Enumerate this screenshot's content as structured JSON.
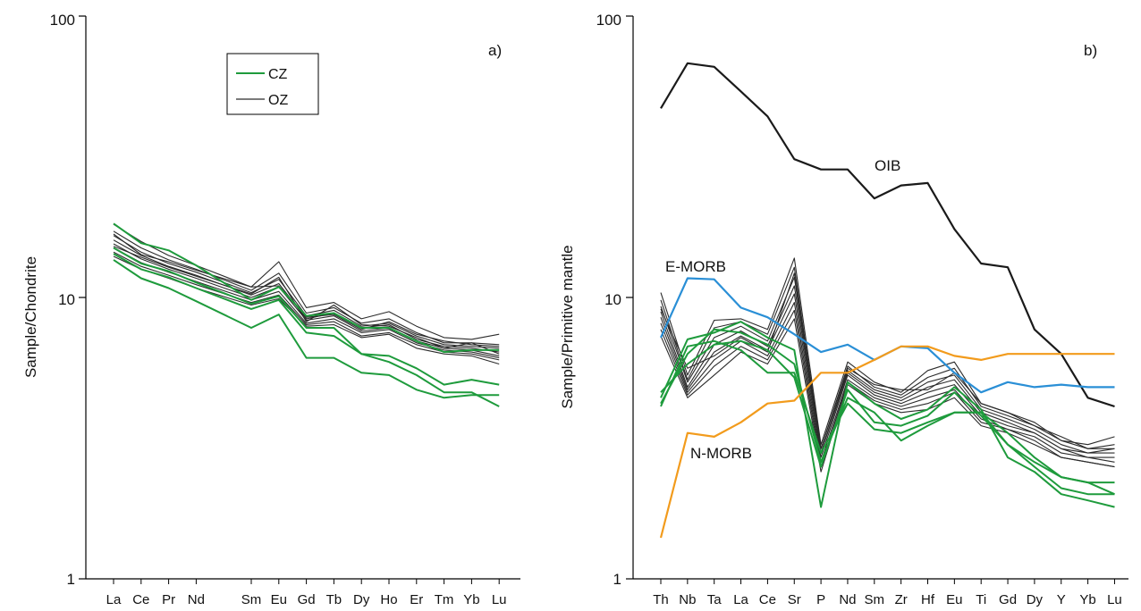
{
  "chart_data": [
    {
      "type": "line",
      "panel_label": "a)",
      "ylabel": "Sample/Chondrite",
      "yscale": "log",
      "ylim": [
        1,
        100
      ],
      "yticks": [
        "1",
        "10",
        "100"
      ],
      "categories": [
        "La",
        "Ce",
        "Pr",
        "Nd",
        "",
        "Sm",
        "Eu",
        "Gd",
        "Tb",
        "Dy",
        "Ho",
        "Er",
        "Tm",
        "Yb",
        "Lu"
      ],
      "legend": {
        "position": "top-center",
        "entries": [
          {
            "label": "CZ",
            "color": "#1e9b3c"
          },
          {
            "label": "OZ",
            "color": "#2b2b2b"
          }
        ]
      },
      "series": [
        {
          "group": "CZ",
          "color": "#1e9b3c",
          "values": [
            18.3,
            15.6,
            14.7,
            13.0,
            null,
            9.8,
            10.9,
            8.6,
            8.8,
            7.8,
            7.8,
            7.0,
            6.4,
            6.5,
            6.5
          ]
        },
        {
          "group": "CZ",
          "color": "#1e9b3c",
          "values": [
            13.6,
            11.7,
            10.8,
            9.7,
            null,
            7.8,
            8.7,
            6.1,
            6.1,
            5.4,
            5.3,
            4.7,
            4.4,
            4.5,
            4.5
          ]
        },
        {
          "group": "CZ",
          "color": "#1e9b3c",
          "values": [
            14.3,
            12.6,
            11.8,
            10.8,
            null,
            9.1,
            9.8,
            7.5,
            7.3,
            6.3,
            5.9,
            5.3,
            4.6,
            4.6,
            4.1
          ]
        },
        {
          "group": "CZ",
          "color": "#1e9b3c",
          "values": [
            15.0,
            13.2,
            12.4,
            11.3,
            null,
            9.5,
            10.1,
            7.8,
            7.8,
            6.3,
            6.2,
            5.6,
            4.9,
            5.1,
            4.9
          ]
        },
        {
          "group": "OZ",
          "color": "#2b2b2b",
          "values": [
            18.2,
            15.8,
            14.1,
            13.0,
            null,
            10.9,
            13.4,
            9.2,
            9.6,
            8.4,
            8.9,
            7.9,
            7.2,
            7.1,
            7.4
          ]
        },
        {
          "group": "OZ",
          "color": "#2b2b2b",
          "values": [
            17.2,
            15.0,
            13.6,
            12.6,
            null,
            10.6,
            12.2,
            8.8,
            9.2,
            8.1,
            8.4,
            7.5,
            6.9,
            6.9,
            6.8
          ]
        },
        {
          "group": "OZ",
          "color": "#2b2b2b",
          "values": [
            16.6,
            14.5,
            13.2,
            12.3,
            null,
            10.4,
            11.6,
            8.6,
            9.0,
            7.9,
            8.1,
            7.3,
            6.8,
            6.7,
            6.6
          ]
        },
        {
          "group": "OZ",
          "color": "#2b2b2b",
          "values": [
            16.0,
            14.1,
            12.9,
            12.0,
            null,
            10.2,
            11.2,
            8.4,
            8.8,
            7.8,
            8.0,
            7.1,
            6.7,
            6.6,
            6.4
          ]
        },
        {
          "group": "OZ",
          "color": "#2b2b2b",
          "values": [
            15.5,
            13.7,
            12.6,
            11.7,
            null,
            10.0,
            10.9,
            8.3,
            8.6,
            7.6,
            7.8,
            7.0,
            6.6,
            6.5,
            6.2
          ]
        },
        {
          "group": "OZ",
          "color": "#2b2b2b",
          "values": [
            15.0,
            13.3,
            12.3,
            11.4,
            null,
            9.8,
            10.5,
            8.1,
            8.4,
            7.5,
            7.7,
            6.9,
            6.5,
            6.4,
            6.1
          ]
        },
        {
          "group": "OZ",
          "color": "#2b2b2b",
          "values": [
            14.5,
            12.9,
            12.0,
            11.1,
            null,
            9.6,
            10.2,
            8.0,
            8.2,
            7.3,
            7.5,
            6.8,
            6.4,
            6.3,
            6.0
          ]
        },
        {
          "group": "OZ",
          "color": "#2b2b2b",
          "values": [
            14.0,
            12.6,
            11.7,
            10.8,
            null,
            9.4,
            9.9,
            7.9,
            8.0,
            7.2,
            7.4,
            6.6,
            6.3,
            6.2,
            5.8
          ]
        },
        {
          "group": "OZ",
          "color": "#2b2b2b",
          "values": [
            16.8,
            14.2,
            13.4,
            12.5,
            null,
            10.9,
            11.0,
            8.5,
            8.7,
            7.7,
            8.2,
            7.4,
            7.0,
            6.8,
            6.7
          ]
        },
        {
          "group": "OZ",
          "color": "#2b2b2b",
          "values": [
            15.2,
            13.9,
            12.8,
            11.9,
            null,
            10.3,
            11.8,
            8.2,
            9.4,
            8.0,
            7.9,
            7.2,
            6.6,
            6.9,
            6.3
          ]
        }
      ]
    },
    {
      "type": "line",
      "panel_label": "b)",
      "ylabel": "Sample/Primitive mantle",
      "yscale": "log",
      "ylim": [
        1,
        100
      ],
      "yticks": [
        "1",
        "10",
        "100"
      ],
      "categories": [
        "Th",
        "Nb",
        "Ta",
        "La",
        "Ce",
        "Sr",
        "P",
        "Nd",
        "Sm",
        "Zr",
        "Hf",
        "Eu",
        "Ti",
        "Gd",
        "Dy",
        "Y",
        "Yb",
        "Lu"
      ],
      "references": [
        {
          "name": "OIB",
          "color": "#1a1a1a",
          "values": [
            47,
            68,
            66,
            54,
            44,
            31,
            28.5,
            28.5,
            22.5,
            25,
            25.5,
            17.5,
            13.2,
            12.8,
            7.7,
            6.3,
            4.4,
            4.1
          ]
        },
        {
          "name": "E-MORB",
          "color": "#2a8fd6",
          "values": [
            7.2,
            11.7,
            11.6,
            9.2,
            8.5,
            7.4,
            6.4,
            6.8,
            6.0,
            6.7,
            6.6,
            5.4,
            4.6,
            5.0,
            4.8,
            4.9,
            4.8,
            4.8
          ]
        },
        {
          "name": "N-MORB",
          "color": "#f29b1c",
          "values": [
            1.4,
            3.3,
            3.2,
            3.6,
            4.2,
            4.3,
            5.4,
            5.4,
            6.0,
            6.7,
            6.7,
            6.2,
            6.0,
            6.3,
            6.3,
            6.3,
            6.3,
            6.3
          ]
        }
      ],
      "series": [
        {
          "group": "CZ",
          "color": "#1e9b3c",
          "values": [
            4.4,
            7.1,
            7.5,
            8.2,
            7.2,
            6.5,
            1.8,
            5.0,
            4.2,
            3.7,
            4.0,
            4.8,
            4.0,
            2.7,
            2.4,
            2.0,
            1.9,
            1.8
          ]
        },
        {
          "group": "CZ",
          "color": "#1e9b3c",
          "values": [
            4.2,
            6.3,
            7.7,
            7.5,
            6.8,
            5.8,
            2.6,
            4.4,
            3.9,
            3.1,
            3.5,
            3.9,
            3.9,
            3.3,
            2.7,
            2.3,
            2.2,
            2.2
          ]
        },
        {
          "group": "CZ",
          "color": "#1e9b3c",
          "values": [
            4.1,
            6.7,
            7.0,
            6.5,
            5.4,
            5.4,
            2.8,
            4.2,
            3.4,
            3.3,
            3.6,
            3.9,
            3.9,
            3.0,
            2.5,
            2.1,
            2.0,
            2.0
          ]
        },
        {
          "group": "CZ",
          "color": "#1e9b3c",
          "values": [
            4.6,
            5.8,
            6.8,
            7.0,
            6.5,
            5.2,
            2.5,
            4.7,
            3.6,
            3.5,
            3.8,
            4.6,
            3.8,
            3.0,
            2.6,
            2.3,
            2.2,
            2.0
          ]
        },
        {
          "group": "OZ",
          "color": "#2b2b2b",
          "values": [
            10.4,
            5.3,
            8.3,
            8.4,
            7.7,
            13.8,
            3.0,
            5.9,
            5.0,
            4.6,
            5.5,
            5.9,
            4.2,
            3.9,
            3.6,
            3.1,
            3.0,
            3.2
          ]
        },
        {
          "group": "OZ",
          "color": "#2b2b2b",
          "values": [
            9.8,
            5.1,
            7.8,
            8.2,
            7.4,
            12.8,
            2.9,
            5.7,
            4.8,
            4.5,
            5.2,
            5.6,
            4.1,
            3.8,
            3.5,
            3.1,
            2.9,
            3.0
          ]
        },
        {
          "group": "OZ",
          "color": "#2b2b2b",
          "values": [
            9.3,
            5.0,
            7.2,
            7.9,
            7.0,
            11.8,
            2.8,
            5.5,
            4.7,
            4.4,
            5.0,
            5.3,
            4.0,
            3.7,
            3.4,
            3.0,
            2.8,
            2.9
          ]
        },
        {
          "group": "OZ",
          "color": "#2b2b2b",
          "values": [
            8.9,
            4.8,
            6.8,
            7.6,
            6.7,
            11.0,
            2.8,
            5.4,
            4.6,
            4.3,
            4.8,
            5.1,
            3.9,
            3.6,
            3.3,
            2.9,
            2.8,
            2.8
          ]
        },
        {
          "group": "OZ",
          "color": "#2b2b2b",
          "values": [
            8.5,
            4.7,
            6.4,
            7.3,
            6.5,
            10.3,
            2.7,
            5.3,
            4.5,
            4.2,
            4.6,
            4.9,
            3.8,
            3.5,
            3.3,
            2.9,
            2.7,
            2.7
          ]
        },
        {
          "group": "OZ",
          "color": "#2b2b2b",
          "values": [
            8.1,
            4.6,
            6.0,
            7.0,
            6.2,
            9.6,
            2.6,
            5.1,
            4.4,
            4.1,
            4.4,
            4.7,
            3.7,
            3.4,
            3.2,
            2.8,
            2.7,
            2.6
          ]
        },
        {
          "group": "OZ",
          "color": "#2b2b2b",
          "values": [
            7.7,
            4.5,
            5.7,
            6.7,
            6.0,
            9.0,
            2.5,
            5.0,
            4.3,
            4.0,
            4.2,
            4.6,
            3.6,
            3.4,
            3.1,
            2.7,
            2.6,
            2.5
          ]
        },
        {
          "group": "OZ",
          "color": "#2b2b2b",
          "values": [
            7.3,
            4.4,
            5.3,
            6.4,
            5.8,
            8.4,
            2.4,
            4.9,
            4.2,
            3.9,
            4.0,
            4.4,
            3.5,
            3.3,
            3.0,
            2.7,
            2.6,
            2.5
          ]
        },
        {
          "group": "OZ",
          "color": "#2b2b2b",
          "values": [
            9.1,
            5.6,
            6.2,
            7.2,
            6.4,
            12.2,
            2.9,
            5.6,
            4.9,
            4.7,
            4.7,
            5.4,
            4.2,
            3.9,
            3.5,
            3.2,
            2.9,
            2.9
          ]
        }
      ],
      "annotations": [
        "OIB",
        "E-MORB",
        "N-MORB"
      ]
    }
  ]
}
